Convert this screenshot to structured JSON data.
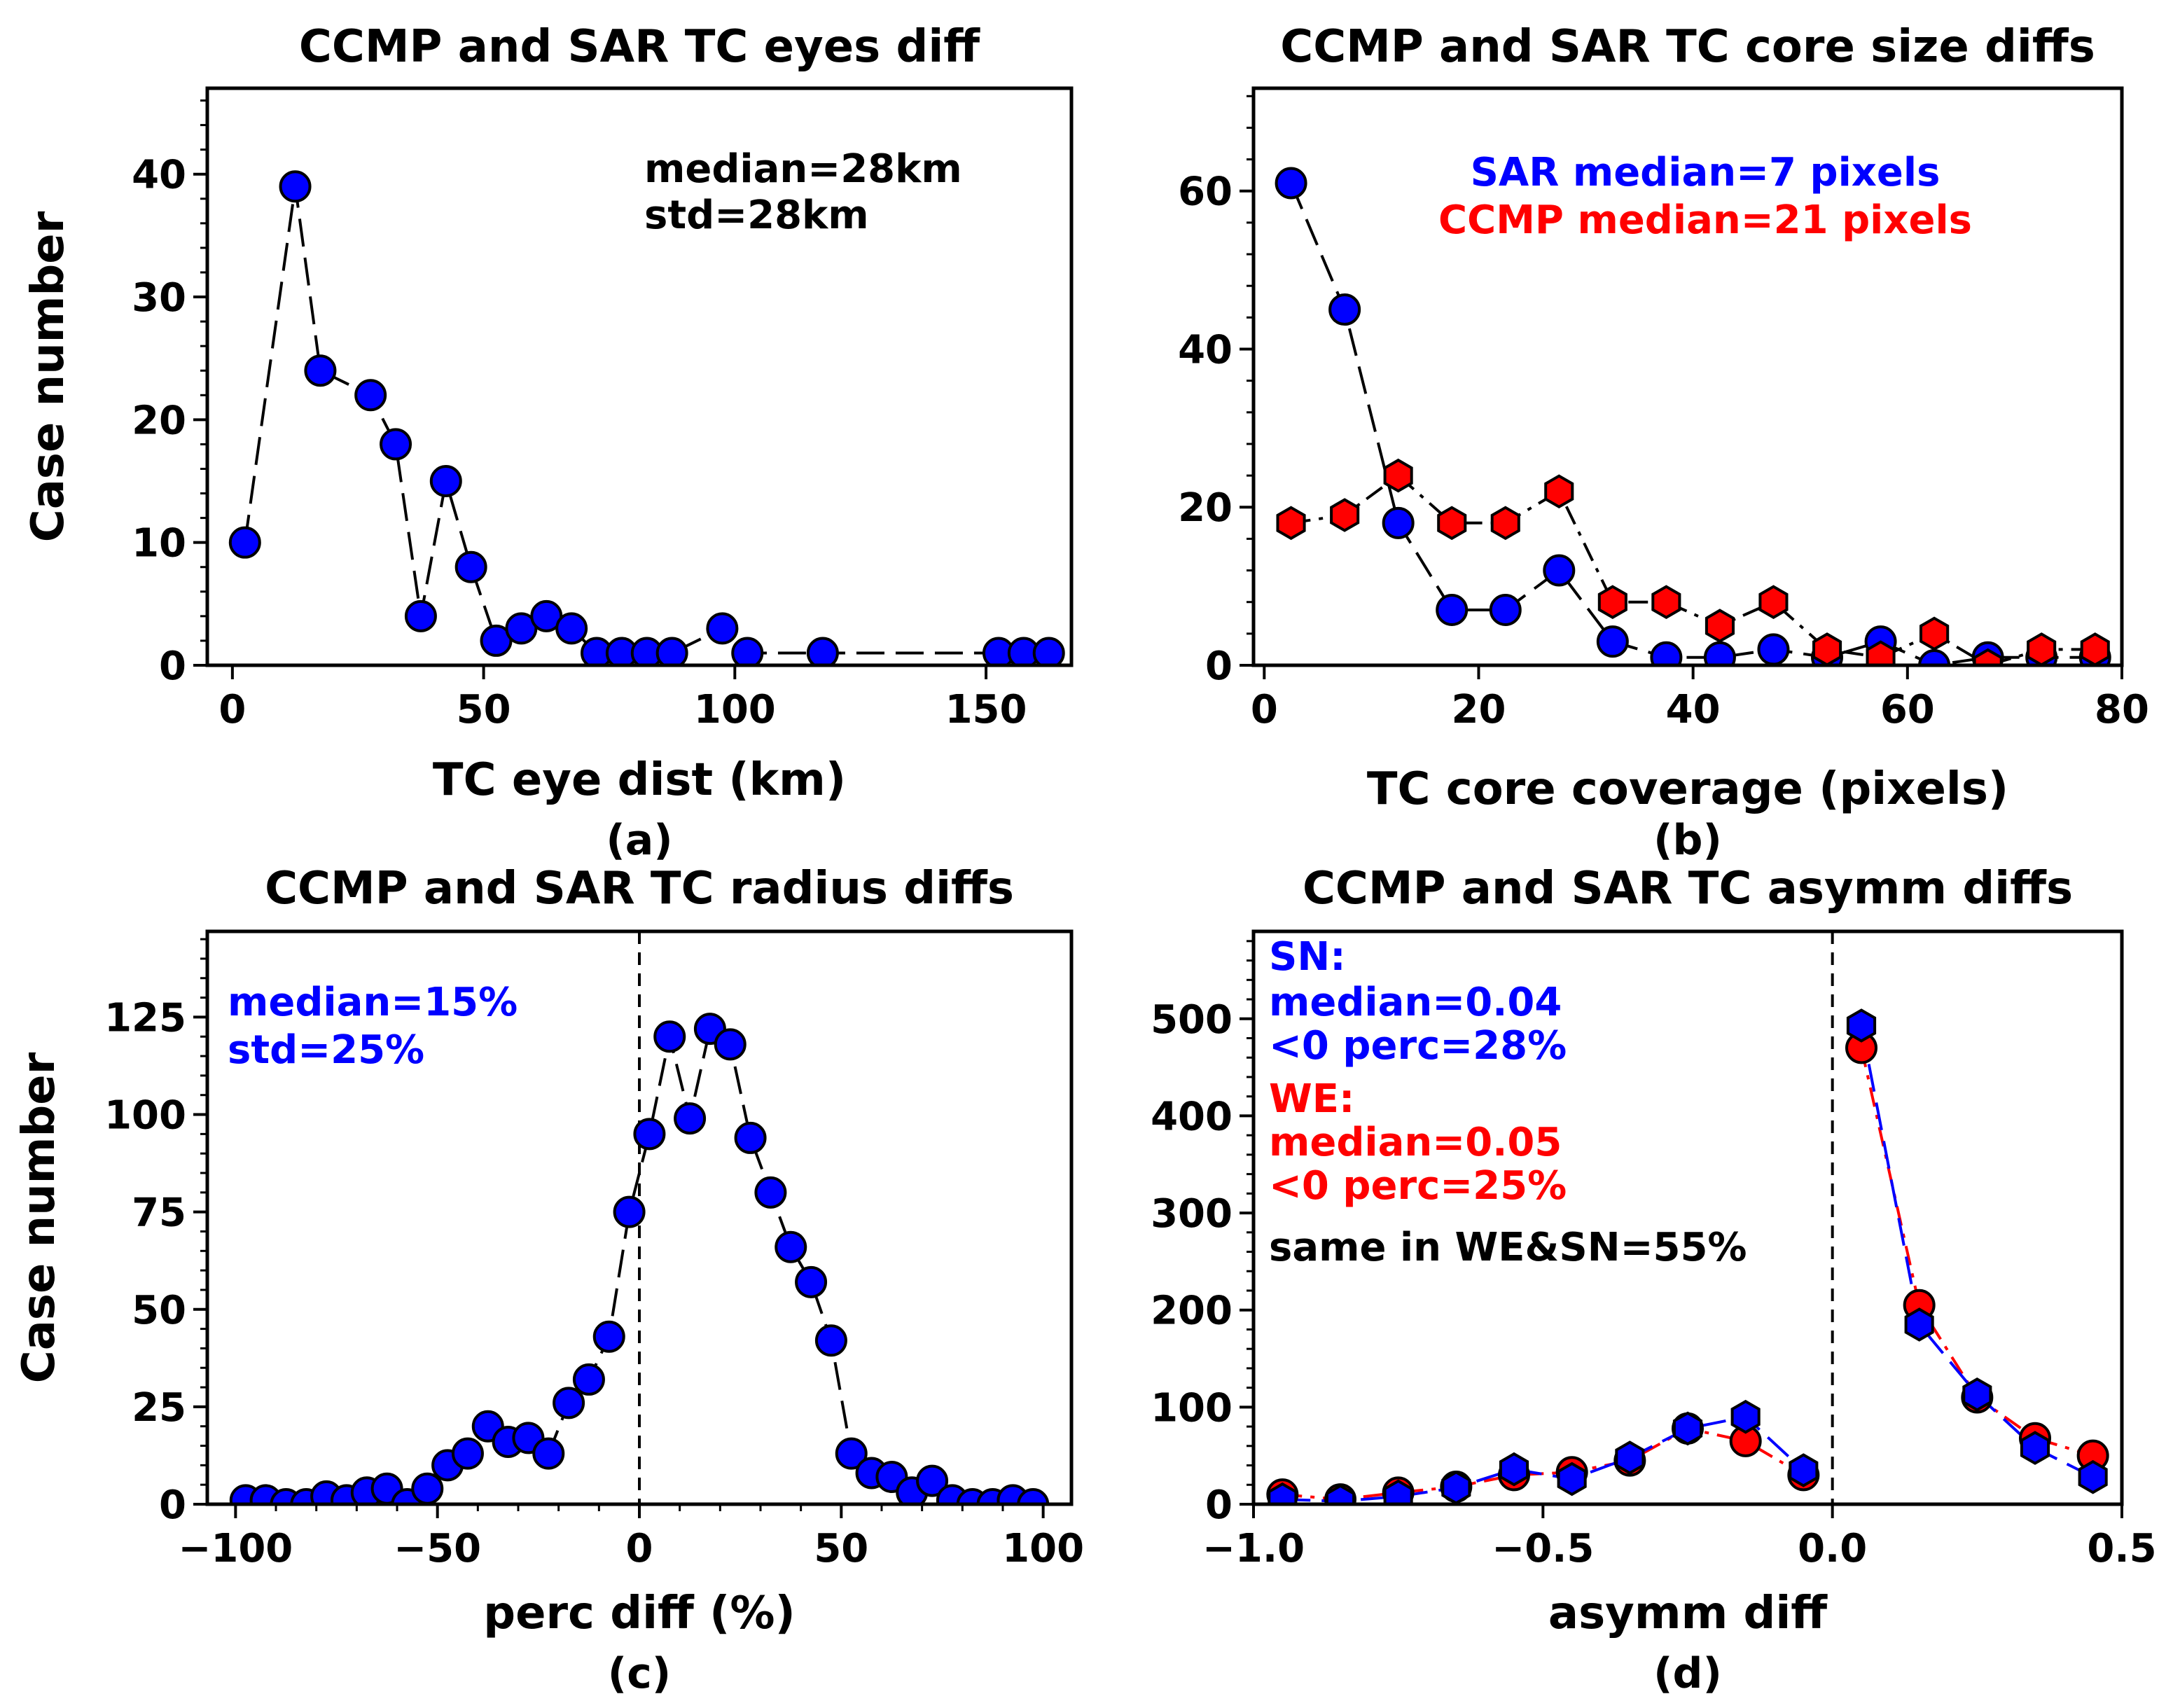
{
  "chart_data": [
    {
      "id": "a",
      "type": "line",
      "title": "CCMP and SAR TC eyes diff",
      "xlabel": "TC eye dist (km)",
      "ylabel": "Case number",
      "panel_label": "(a)",
      "xlim": [
        -5,
        167
      ],
      "ylim": [
        0,
        47
      ],
      "xticks": [
        0,
        50,
        100,
        150
      ],
      "yticks": [
        0,
        10,
        20,
        30,
        40
      ],
      "annotations": [
        {
          "text": "median=28km",
          "color": "#000000"
        },
        {
          "text": "std=28km",
          "color": "#000000"
        }
      ],
      "series": [
        {
          "name": "eye dist",
          "color": "#0000ff",
          "marker": "circle",
          "linestyle": "dashed",
          "x": [
            2.5,
            12.5,
            17.5,
            27.5,
            32.5,
            37.5,
            42.5,
            47.5,
            52.5,
            57.5,
            62.5,
            67.5,
            72.5,
            77.5,
            82.5,
            87.5,
            97.5,
            102.5,
            117.5,
            152.5,
            157.5,
            162.5
          ],
          "y": [
            10,
            39,
            24,
            22,
            18,
            4,
            15,
            8,
            2,
            3,
            4,
            3,
            1,
            1,
            1,
            1,
            3,
            1,
            1,
            1,
            1,
            1
          ]
        }
      ]
    },
    {
      "id": "b",
      "type": "line",
      "title": "CCMP and SAR TC core size diffs",
      "xlabel": "TC core coverage (pixels)",
      "ylabel": "",
      "panel_label": "(b)",
      "xlim": [
        -1,
        80
      ],
      "ylim": [
        0,
        73
      ],
      "xticks": [
        0,
        20,
        40,
        60,
        80
      ],
      "yticks": [
        0,
        20,
        40,
        60
      ],
      "annotations": [
        {
          "text": "SAR median=7 pixels",
          "color": "#0000ff"
        },
        {
          "text": "CCMP median=21 pixels",
          "color": "#ff0000"
        }
      ],
      "series": [
        {
          "name": "SAR",
          "color": "#0000ff",
          "marker": "circle",
          "linestyle": "dashed",
          "x": [
            2.5,
            7.5,
            12.5,
            17.5,
            22.5,
            27.5,
            32.5,
            37.5,
            42.5,
            47.5,
            52.5,
            57.5,
            62.5,
            67.5,
            72.5,
            77.5
          ],
          "y": [
            61,
            45,
            18,
            7,
            7,
            12,
            3,
            1,
            1,
            2,
            1,
            3,
            0,
            1,
            1,
            1
          ]
        },
        {
          "name": "CCMP",
          "color": "#ff0000",
          "marker": "hexagon",
          "linestyle": "dashdot",
          "x": [
            2.5,
            7.5,
            12.5,
            17.5,
            22.5,
            27.5,
            32.5,
            37.5,
            42.5,
            47.5,
            52.5,
            57.5,
            62.5,
            67.5,
            72.5,
            77.5
          ],
          "y": [
            18,
            19,
            24,
            18,
            18,
            22,
            8,
            8,
            5,
            8,
            2,
            1,
            4,
            0,
            2,
            2
          ]
        }
      ]
    },
    {
      "id": "c",
      "type": "line",
      "title": "CCMP and SAR TC radius diffs",
      "xlabel": "perc diff (%)",
      "ylabel": "Case number",
      "panel_label": "(c)",
      "xlim": [
        -107,
        107
      ],
      "ylim": [
        0,
        147
      ],
      "xticks": [
        -100,
        -50,
        0,
        50,
        100
      ],
      "xticklabels": [
        "−100",
        "−50",
        "0",
        "50",
        "100"
      ],
      "yticks": [
        0,
        25,
        50,
        75,
        100,
        125
      ],
      "vline": 0,
      "annotations": [
        {
          "text": "median=15%",
          "color": "#0000ff"
        },
        {
          "text": "std=25%",
          "color": "#0000ff"
        }
      ],
      "series": [
        {
          "name": "radius perc diff",
          "color": "#0000ff",
          "marker": "circle",
          "linestyle": "dashed",
          "x": [
            -97.5,
            -92.5,
            -87.5,
            -82.5,
            -77.5,
            -72.5,
            -67.5,
            -62.5,
            -57.5,
            -52.5,
            -47.5,
            -42.5,
            -37.5,
            -32.5,
            -27.5,
            -22.5,
            -17.5,
            -12.5,
            -7.5,
            -2.5,
            2.5,
            7.5,
            12.5,
            17.5,
            22.5,
            27.5,
            32.5,
            37.5,
            42.5,
            47.5,
            52.5,
            57.5,
            62.5,
            67.5,
            72.5,
            77.5,
            82.5,
            87.5,
            92.5,
            97.5
          ],
          "y": [
            1,
            1,
            0,
            0,
            2,
            1,
            3,
            4,
            0,
            4,
            10,
            13,
            20,
            16,
            17,
            13,
            26,
            32,
            43,
            75,
            95,
            120,
            99,
            122,
            118,
            94,
            80,
            66,
            57,
            42,
            13,
            8,
            7,
            3,
            6,
            1,
            0,
            0,
            1,
            0
          ]
        }
      ]
    },
    {
      "id": "d",
      "type": "line",
      "title": "CCMP and SAR TC asymm diffs",
      "xlabel": "asymm diff",
      "ylabel": "",
      "panel_label": "(d)",
      "xlim": [
        -1.0,
        0.5
      ],
      "ylim": [
        0,
        590
      ],
      "xticks": [
        -1.0,
        -0.5,
        0.0,
        0.5
      ],
      "xticklabels": [
        "−1.0",
        "−0.5",
        "0.0",
        "0.5"
      ],
      "yticks": [
        0,
        100,
        200,
        300,
        400,
        500
      ],
      "vline": 0,
      "annotations": [
        {
          "text": "SN:",
          "color": "#0000ff"
        },
        {
          "text": "median=0.04",
          "color": "#0000ff"
        },
        {
          "text": "<0 perc=28%",
          "color": "#0000ff"
        },
        {
          "text": "WE:",
          "color": "#ff0000"
        },
        {
          "text": "median=0.05",
          "color": "#ff0000"
        },
        {
          "text": "<0 perc=25%",
          "color": "#ff0000"
        },
        {
          "text": "same in WE&SN=55%",
          "color": "#000000"
        }
      ],
      "series": [
        {
          "name": "WE",
          "color": "#ff0000",
          "marker": "circle",
          "linestyle": "dashdot",
          "segments": [
            {
              "x": [
                -0.95,
                -0.85,
                -0.75,
                -0.65,
                -0.55,
                -0.45,
                -0.35,
                -0.25,
                -0.15,
                -0.05
              ],
              "y": [
                10,
                5,
                12,
                18,
                30,
                33,
                45,
                78,
                65,
                30
              ]
            },
            {
              "x": [
                0.05,
                0.15,
                0.25,
                0.35,
                0.45
              ],
              "y": [
                470,
                205,
                110,
                68,
                50
              ]
            }
          ]
        },
        {
          "name": "SN",
          "color": "#0000ff",
          "marker": "hexagon",
          "linestyle": "dashed",
          "segments": [
            {
              "x": [
                -0.95,
                -0.85,
                -0.75,
                -0.65,
                -0.55,
                -0.45,
                -0.35,
                -0.25,
                -0.15,
                -0.05
              ],
              "y": [
                5,
                3,
                8,
                17,
                36,
                26,
                48,
                78,
                90,
                35
              ]
            },
            {
              "x": [
                0.05,
                0.15,
                0.25,
                0.35,
                0.45
              ],
              "y": [
                493,
                185,
                113,
                58,
                28
              ]
            }
          ]
        }
      ]
    }
  ]
}
